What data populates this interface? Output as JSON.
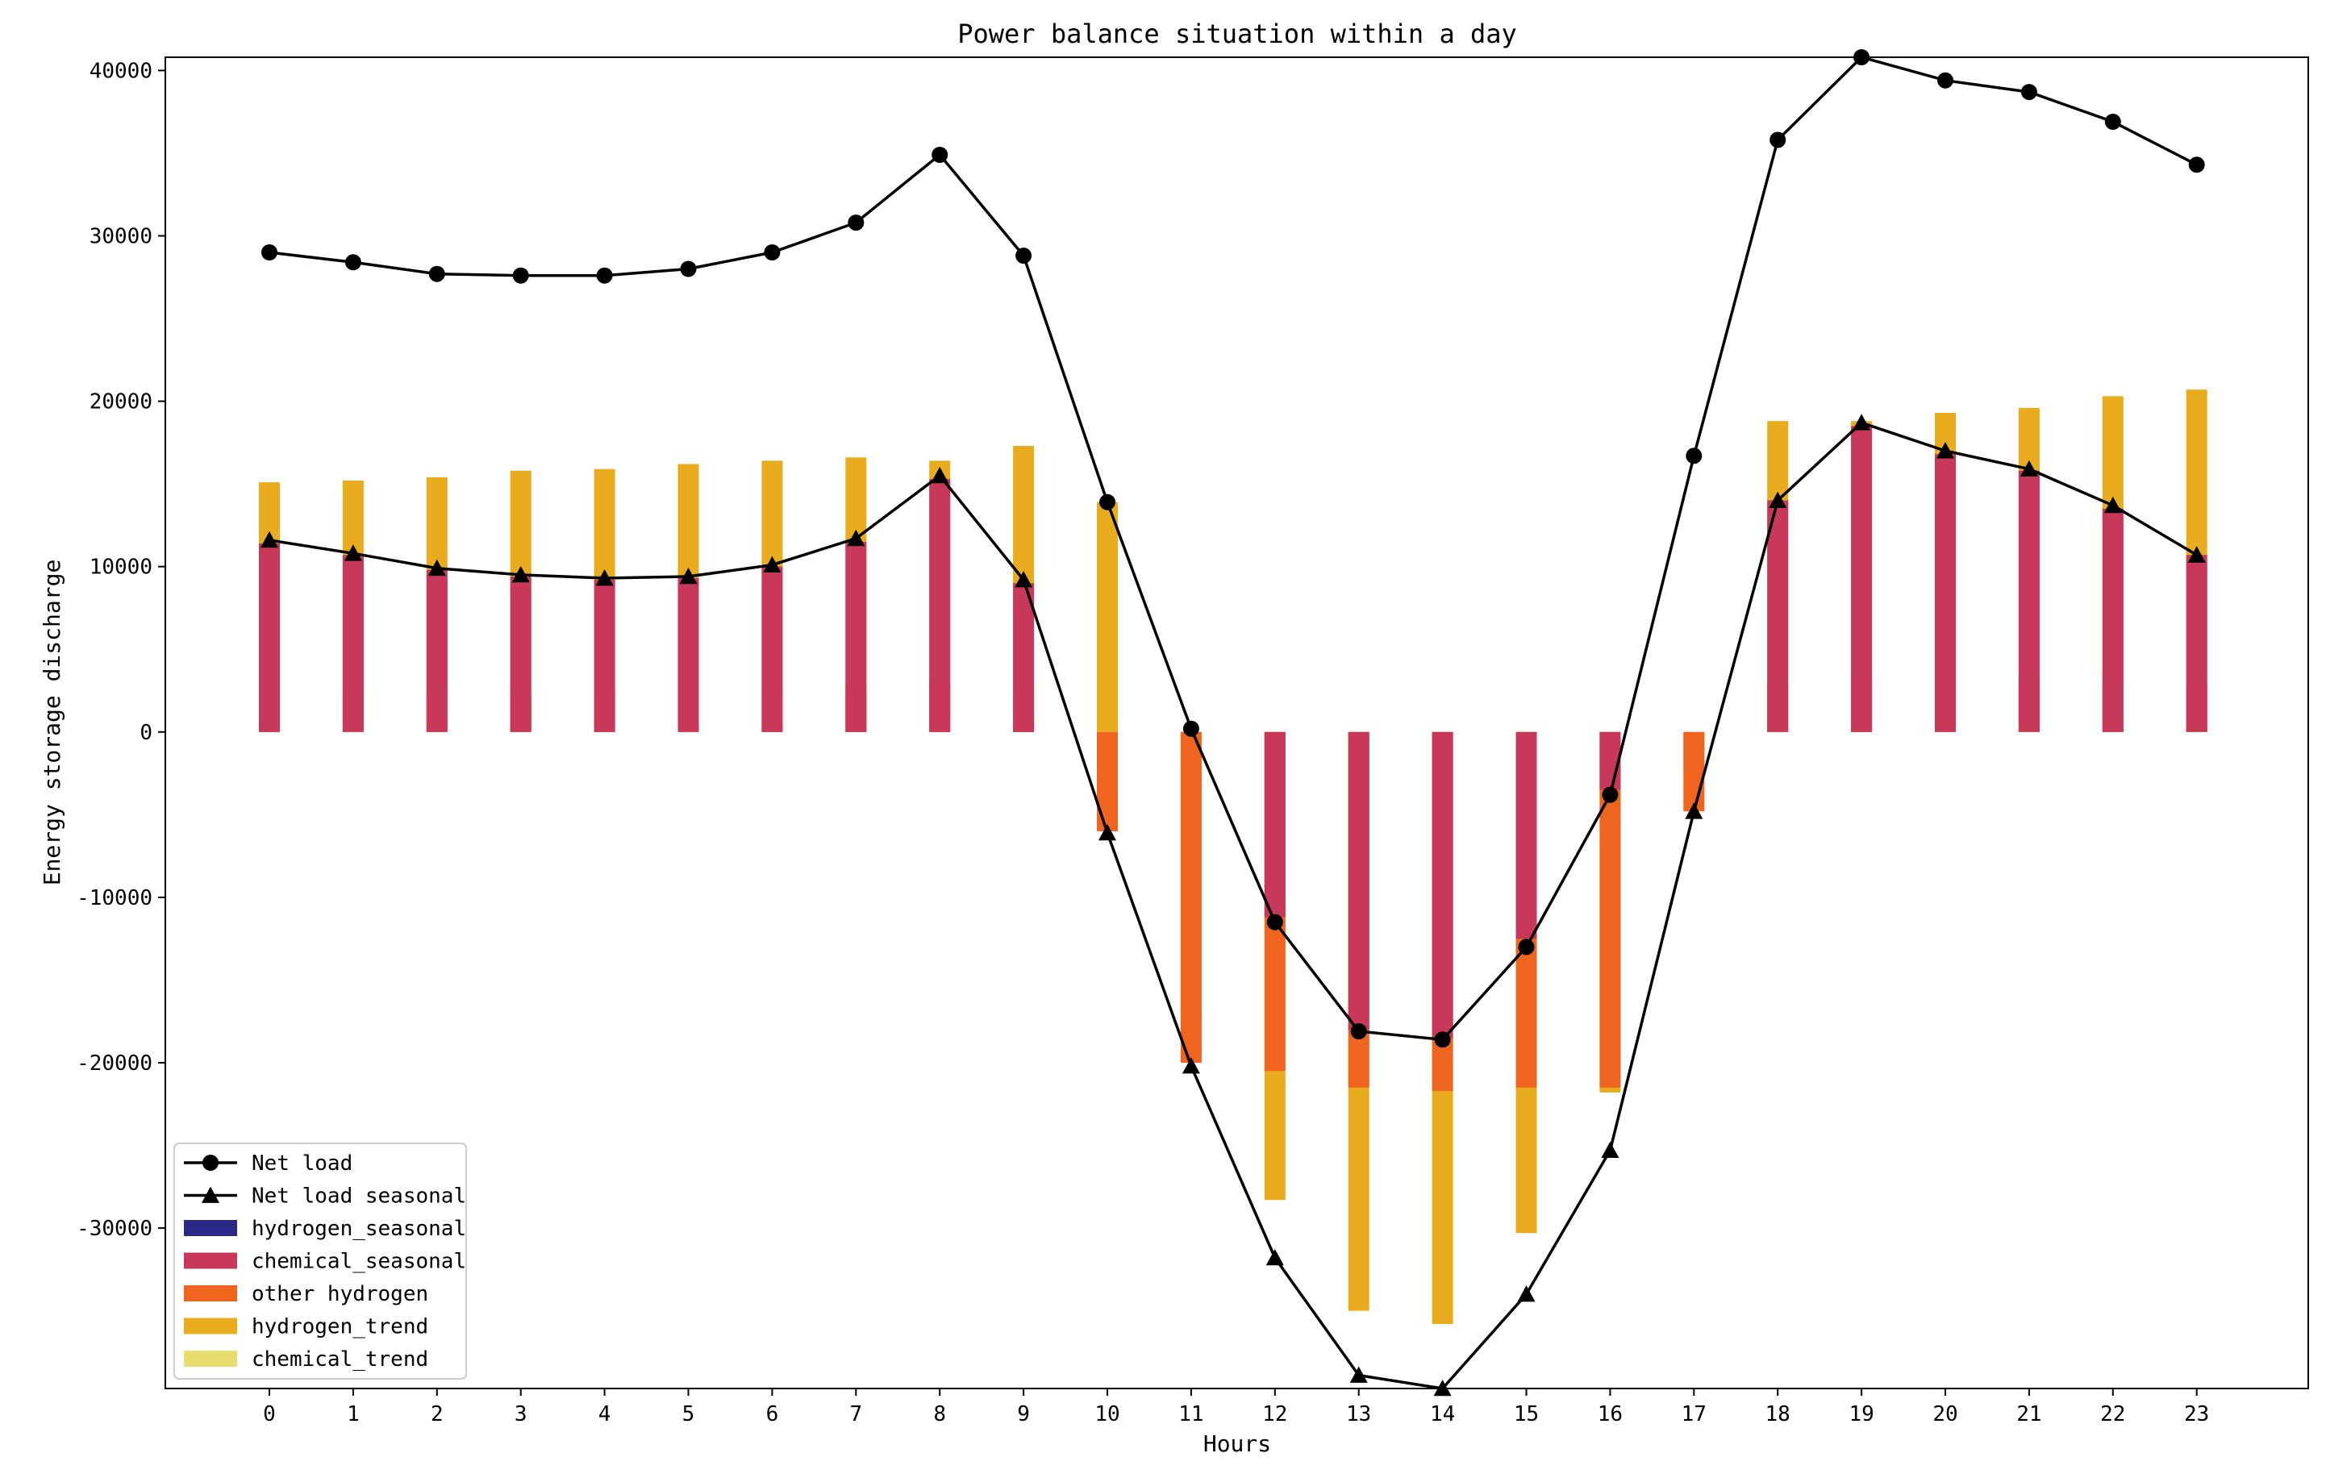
{
  "chart_data": {
    "type": "bar",
    "title": "Power balance situation within a day",
    "xlabel": "Hours",
    "ylabel": "Energy storage discharge",
    "x": [
      0,
      1,
      2,
      3,
      4,
      5,
      6,
      7,
      8,
      9,
      10,
      11,
      12,
      13,
      14,
      15,
      16,
      17,
      18,
      19,
      20,
      21,
      22,
      23
    ],
    "x_tick_labels": [
      "0",
      "1",
      "2",
      "3",
      "4",
      "5",
      "6",
      "7",
      "8",
      "9",
      "10",
      "11",
      "12",
      "13",
      "14",
      "15",
      "16",
      "17",
      "18",
      "19",
      "20",
      "21",
      "22",
      "23"
    ],
    "ylim": [
      -39700,
      40800
    ],
    "y_ticks": [
      40000,
      30000,
      20000,
      10000,
      0,
      -10000,
      -20000,
      -30000
    ],
    "y_tick_labels": [
      "40000",
      "30000",
      "20000",
      "10000",
      "0",
      "-10000",
      "-20000",
      "-30000"
    ],
    "grid": false,
    "legend_position": "lower-left",
    "bar_stacks": [
      {
        "name": "hydrogen_seasonal",
        "color": "#2a2a86",
        "values": [
          0,
          0,
          0,
          0,
          0,
          0,
          0,
          0,
          0,
          0,
          0,
          0,
          0,
          0,
          0,
          0,
          0,
          0,
          0,
          0,
          0,
          0,
          0,
          0
        ]
      },
      {
        "name": "chemical_seasonal",
        "color": "#c8385a",
        "values": [
          11400,
          10700,
          9800,
          9400,
          9200,
          9300,
          10000,
          11500,
          15300,
          9000,
          0,
          0,
          -11200,
          -18000,
          -18500,
          -12500,
          -3500,
          0,
          14000,
          18500,
          16800,
          15800,
          13500,
          10700
        ]
      },
      {
        "name": "other hydrogen",
        "color": "#ef641e",
        "values": [
          2500,
          2500,
          2400,
          2400,
          2400,
          2400,
          2500,
          2700,
          3000,
          2400,
          -6000,
          -20000,
          -20500,
          -21500,
          -21700,
          -21500,
          -21500,
          -4800,
          3000,
          3500,
          3400,
          3200,
          3100,
          2900
        ]
      },
      {
        "name": "hydrogen_trend",
        "color": "#e8ac1e",
        "values": [
          15100,
          15200,
          15400,
          15800,
          15900,
          16200,
          16400,
          16600,
          16400,
          17300,
          13900,
          -17000,
          -28300,
          -35000,
          -35800,
          -30300,
          -21800,
          -2300,
          18800,
          18800,
          19300,
          19600,
          20300,
          20700
        ]
      },
      {
        "name": "chemical_trend",
        "color": "#e8de6e",
        "values": [
          0,
          0,
          0,
          0,
          0,
          0,
          0,
          0,
          0,
          0,
          0,
          0,
          0,
          0,
          0,
          0,
          0,
          0,
          0,
          0,
          0,
          0,
          0,
          0
        ]
      }
    ],
    "series": [
      {
        "name": "Net load",
        "marker": "circle",
        "color": "#000000",
        "values": [
          29000,
          28400,
          27700,
          27600,
          27600,
          28000,
          29000,
          30800,
          34900,
          28800,
          13900,
          200,
          -11500,
          -18100,
          -18600,
          -13000,
          -3800,
          16700,
          35800,
          40800,
          39400,
          38700,
          36900,
          34300
        ]
      },
      {
        "name": "Net load seasonal",
        "marker": "triangle",
        "color": "#000000",
        "values": [
          11600,
          10800,
          9900,
          9500,
          9300,
          9400,
          10100,
          11700,
          15500,
          9200,
          -6100,
          -20200,
          -31800,
          -38900,
          -39700,
          -34000,
          -25300,
          -4800,
          14000,
          18700,
          17000,
          15900,
          13700,
          10700
        ]
      }
    ],
    "legend_entries": [
      "Net load",
      "Net load seasonal",
      "hydrogen_seasonal",
      "chemical_seasonal",
      "other hydrogen",
      "hydrogen_trend",
      "chemical_trend"
    ]
  }
}
